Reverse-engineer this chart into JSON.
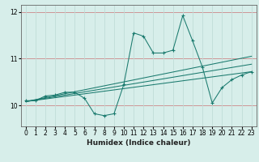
{
  "xlabel": "Humidex (Indice chaleur)",
  "background_color": "#d7eeea",
  "line_color": "#1a7a6e",
  "grid_color_v": "#c0ddd8",
  "grid_color_h": "#c0a0a0",
  "xlim": [
    -0.5,
    23.5
  ],
  "ylim": [
    9.55,
    12.15
  ],
  "yticks": [
    10,
    11,
    12
  ],
  "xticks": [
    0,
    1,
    2,
    3,
    4,
    5,
    6,
    7,
    8,
    9,
    10,
    11,
    12,
    13,
    14,
    15,
    16,
    17,
    18,
    19,
    20,
    21,
    22,
    23
  ],
  "series1_x": [
    0,
    1,
    2,
    3,
    4,
    5,
    6,
    7,
    8,
    9,
    10,
    11,
    12,
    13,
    14,
    15,
    16,
    17,
    18,
    19,
    20,
    21,
    22,
    23
  ],
  "series1_y": [
    10.1,
    10.1,
    10.2,
    10.22,
    10.28,
    10.28,
    10.15,
    9.82,
    9.78,
    9.82,
    10.45,
    11.55,
    11.48,
    11.12,
    11.12,
    11.18,
    11.92,
    11.38,
    10.82,
    10.05,
    10.38,
    10.55,
    10.65,
    10.72
  ],
  "series2_x": [
    0,
    23
  ],
  "series2_y": [
    10.08,
    10.72
  ],
  "series3_x": [
    0,
    23
  ],
  "series3_y": [
    10.08,
    10.88
  ],
  "series4_x": [
    0,
    23
  ],
  "series4_y": [
    10.08,
    11.05
  ],
  "tick_fontsize": 5.5,
  "xlabel_fontsize": 6.5
}
